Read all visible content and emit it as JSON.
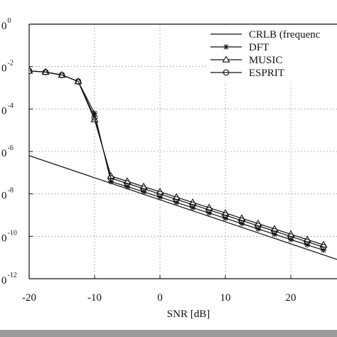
{
  "chart_data": {
    "type": "line",
    "xlabel": "SNR [dB]",
    "ylabel": "",
    "title": "",
    "x_scale": "linear",
    "y_scale": "log",
    "xlim": [
      -20,
      30
    ],
    "ylim": [
      1e-12,
      1
    ],
    "grid": true,
    "legend_position": "top-right",
    "x_ticks": [
      -20,
      -10,
      0,
      10,
      20
    ],
    "x_tick_labels": [
      "-20",
      "-10",
      "0",
      "10",
      "20"
    ],
    "y_ticks": [
      0,
      -2,
      -4,
      -6,
      -8,
      -10,
      -12
    ],
    "y_tick_labels": [
      {
        "base": "0",
        "exp": "0"
      },
      {
        "base": "0",
        "exp": "-2"
      },
      {
        "base": "0",
        "exp": "-4"
      },
      {
        "base": "0",
        "exp": "-6"
      },
      {
        "base": "0",
        "exp": "-8"
      },
      {
        "base": "0",
        "exp": "-10"
      },
      {
        "base": "0",
        "exp": "-12"
      }
    ],
    "series": [
      {
        "name": "CRLB (frequenc",
        "marker": "none",
        "x": [
          -20,
          30
        ],
        "y": [
          6.3e-07,
          4e-12
        ]
      },
      {
        "name": "DFT",
        "marker": "star",
        "x": [
          -20,
          -17.5,
          -15,
          -12.5,
          -10,
          -7.5,
          -5,
          -2.5,
          0,
          2.5,
          5,
          7.5,
          10,
          12.5,
          15,
          17.5,
          20,
          22.5,
          25
        ],
        "y": [
          0.0063,
          0.0055,
          0.004,
          0.00198,
          6.3e-05,
          3.8e-08,
          2.2e-08,
          1.25e-08,
          7e-09,
          3.95e-09,
          2.22e-09,
          1.25e-09,
          7e-10,
          3.95e-10,
          2.22e-10,
          1.25e-10,
          7e-11,
          3.95e-11,
          2.22e-11
        ]
      },
      {
        "name": "MUSIC",
        "marker": "triangle",
        "x": [
          -20,
          -17.5,
          -15,
          -12.5,
          -10,
          -7.5,
          -5,
          -2.5,
          0,
          2.5,
          5,
          7.5,
          10,
          12.5,
          15,
          17.5,
          20,
          22.5,
          25
        ],
        "y": [
          0.0063,
          0.0055,
          0.004,
          0.00198,
          3.2e-05,
          6.9e-08,
          3.9e-08,
          2.2e-08,
          1.25e-08,
          7e-09,
          3.95e-09,
          2.22e-09,
          1.25e-09,
          7e-10,
          3.95e-10,
          2.22e-10,
          1.25e-10,
          7e-11,
          3.95e-11
        ]
      },
      {
        "name": "ESPRIT",
        "marker": "circle",
        "x": [
          -20,
          -17.5,
          -15,
          -12.5,
          -10,
          -7.5,
          -5,
          -2.5,
          0,
          2.5,
          5,
          7.5,
          10,
          12.5,
          15,
          17.5,
          20,
          22.5,
          25
        ],
        "y": [
          0.0063,
          0.0055,
          0.004,
          0.00198,
          4e-05,
          5.5e-08,
          3.1e-08,
          1.75e-08,
          9.8e-09,
          5.5e-09,
          3.1e-09,
          1.75e-09,
          9.8e-10,
          5.5e-10,
          3.1e-10,
          1.75e-10,
          9.8e-11,
          5.5e-11,
          3.1e-11
        ]
      }
    ]
  }
}
